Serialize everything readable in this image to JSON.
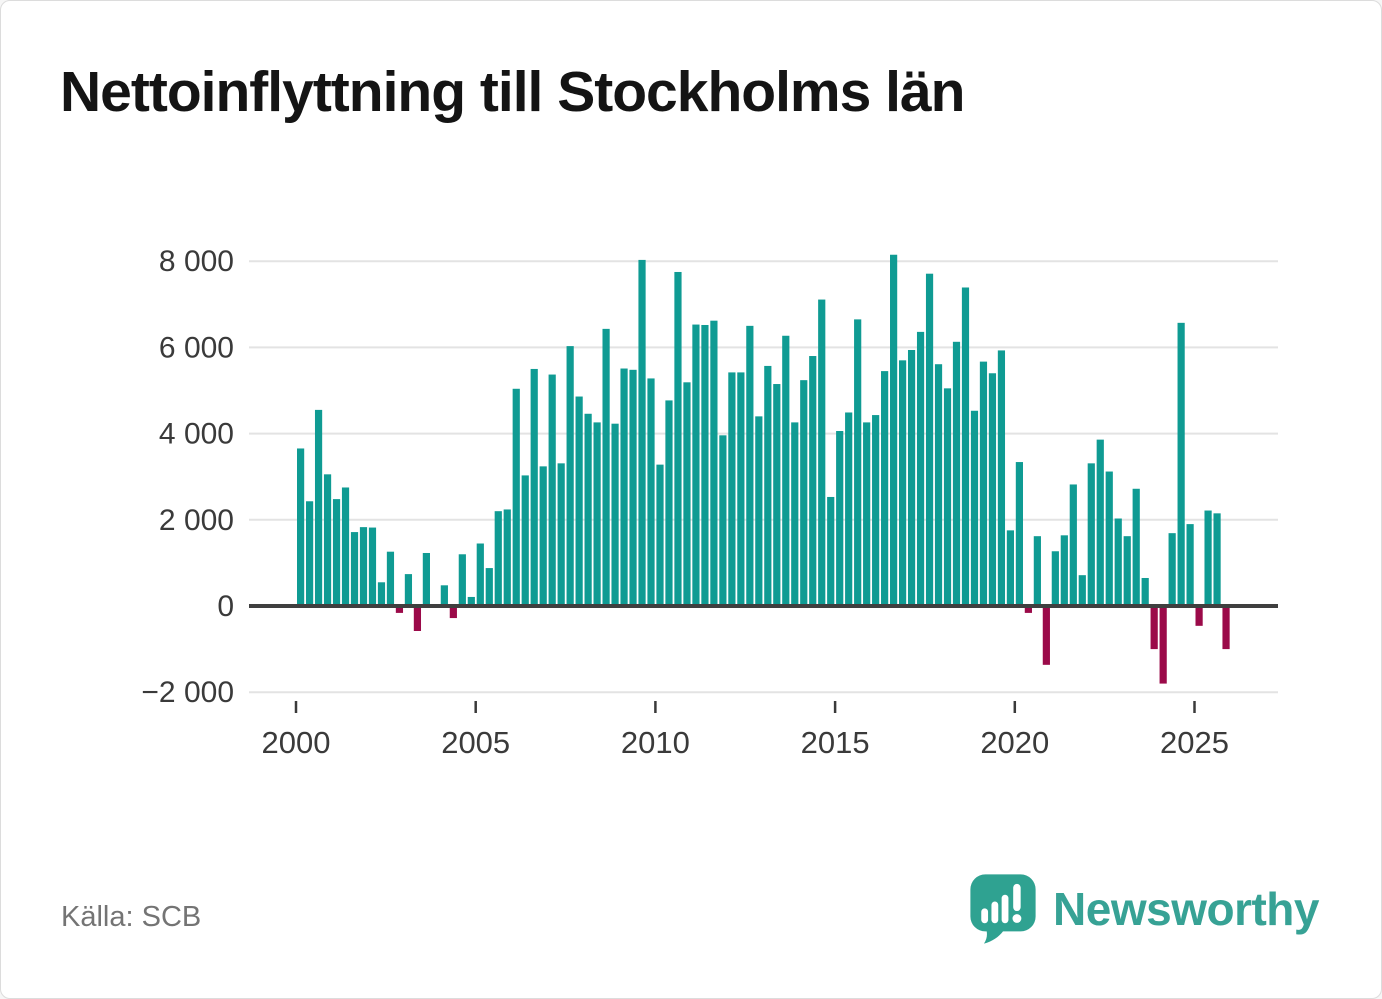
{
  "title": "Nettoinflyttning till Stockholms län",
  "source": "Källa: SCB",
  "brand": {
    "name": "Newsworthy",
    "icon": "newsworthy-speech-bubble-chart-icon",
    "color": "#37a295"
  },
  "colors": {
    "positive_bar": "#0f9b93",
    "negative_bar": "#9b0a49",
    "gridline": "#e3e3e3",
    "zero_line": "#3f3f3f",
    "axis_text": "#3a3a3a",
    "title_text": "#141414",
    "source_text": "#747474"
  },
  "chart_data": {
    "type": "bar",
    "title": "Nettoinflyttning till Stockholms län",
    "xlabel": "",
    "ylabel": "",
    "frequency": "quarterly",
    "ylim": [
      -2000,
      8400
    ],
    "grid": true,
    "yticks": [
      -2000,
      0,
      2000,
      4000,
      6000,
      8000
    ],
    "ytick_labels": [
      "−2 000",
      "0",
      "2 000",
      "4 000",
      "6 000",
      "8 000"
    ],
    "xtick_years": [
      2000,
      2005,
      2010,
      2015,
      2020,
      2025
    ],
    "xtick_labels": [
      "2000",
      "2005",
      "2010",
      "2015",
      "2020",
      "2025"
    ],
    "positive_color": "#0f9b93",
    "negative_color": "#9b0a49",
    "categories": [
      "2000 Q1",
      "2000 Q2",
      "2000 Q3",
      "2000 Q4",
      "2001 Q1",
      "2001 Q2",
      "2001 Q3",
      "2001 Q4",
      "2002 Q1",
      "2002 Q2",
      "2002 Q3",
      "2002 Q4",
      "2003 Q1",
      "2003 Q2",
      "2003 Q3",
      "2003 Q4",
      "2004 Q1",
      "2004 Q2",
      "2004 Q3",
      "2004 Q4",
      "2005 Q1",
      "2005 Q2",
      "2005 Q3",
      "2005 Q4",
      "2006 Q1",
      "2006 Q2",
      "2006 Q3",
      "2006 Q4",
      "2007 Q1",
      "2007 Q2",
      "2007 Q3",
      "2007 Q4",
      "2008 Q1",
      "2008 Q2",
      "2008 Q3",
      "2008 Q4",
      "2009 Q1",
      "2009 Q2",
      "2009 Q3",
      "2009 Q4",
      "2010 Q1",
      "2010 Q2",
      "2010 Q3",
      "2010 Q4",
      "2011 Q1",
      "2011 Q2",
      "2011 Q3",
      "2011 Q4",
      "2012 Q1",
      "2012 Q2",
      "2012 Q3",
      "2012 Q4",
      "2013 Q1",
      "2013 Q2",
      "2013 Q3",
      "2013 Q4",
      "2014 Q1",
      "2014 Q2",
      "2014 Q3",
      "2014 Q4",
      "2015 Q1",
      "2015 Q2",
      "2015 Q3",
      "2015 Q4",
      "2016 Q1",
      "2016 Q2",
      "2016 Q3",
      "2016 Q4",
      "2017 Q1",
      "2017 Q2",
      "2017 Q3",
      "2017 Q4",
      "2018 Q1",
      "2018 Q2",
      "2018 Q3",
      "2018 Q4",
      "2019 Q1",
      "2019 Q2",
      "2019 Q3",
      "2019 Q4",
      "2020 Q1",
      "2020 Q2",
      "2020 Q3",
      "2020 Q4",
      "2021 Q1",
      "2021 Q2",
      "2021 Q3",
      "2021 Q4",
      "2022 Q1",
      "2022 Q2",
      "2022 Q3",
      "2022 Q4",
      "2023 Q1",
      "2023 Q2",
      "2023 Q3",
      "2023 Q4",
      "2024 Q1",
      "2024 Q2",
      "2024 Q3",
      "2024 Q4",
      "2025 Q1",
      "2025 Q2",
      "2025 Q3",
      "2025 Q4"
    ],
    "values": [
      3655,
      2430,
      4550,
      3055,
      2480,
      2750,
      1715,
      1830,
      1820,
      550,
      1260,
      -160,
      740,
      -580,
      1230,
      0,
      480,
      -280,
      1200,
      210,
      1450,
      880,
      2200,
      2240,
      5040,
      3030,
      5500,
      3240,
      5370,
      3310,
      6030,
      4860,
      4460,
      4260,
      6430,
      4230,
      5510,
      5480,
      8030,
      5280,
      3280,
      4770,
      7750,
      5190,
      6530,
      6520,
      6620,
      3960,
      5420,
      5420,
      6500,
      4400,
      5570,
      5150,
      6270,
      4260,
      5240,
      5800,
      7110,
      2530,
      4060,
      4490,
      6650,
      4260,
      4430,
      5450,
      8150,
      5700,
      5940,
      6360,
      7710,
      5610,
      5050,
      6130,
      7390,
      4530,
      5670,
      5400,
      5930,
      1755,
      3340,
      -160,
      1620,
      -1365,
      1270,
      1640,
      2820,
      715,
      3310,
      3860,
      3120,
      2030,
      1620,
      2720,
      650,
      -1000,
      -1800,
      1690,
      6570,
      1900,
      -460,
      2215,
      2150,
      -1000
    ]
  }
}
